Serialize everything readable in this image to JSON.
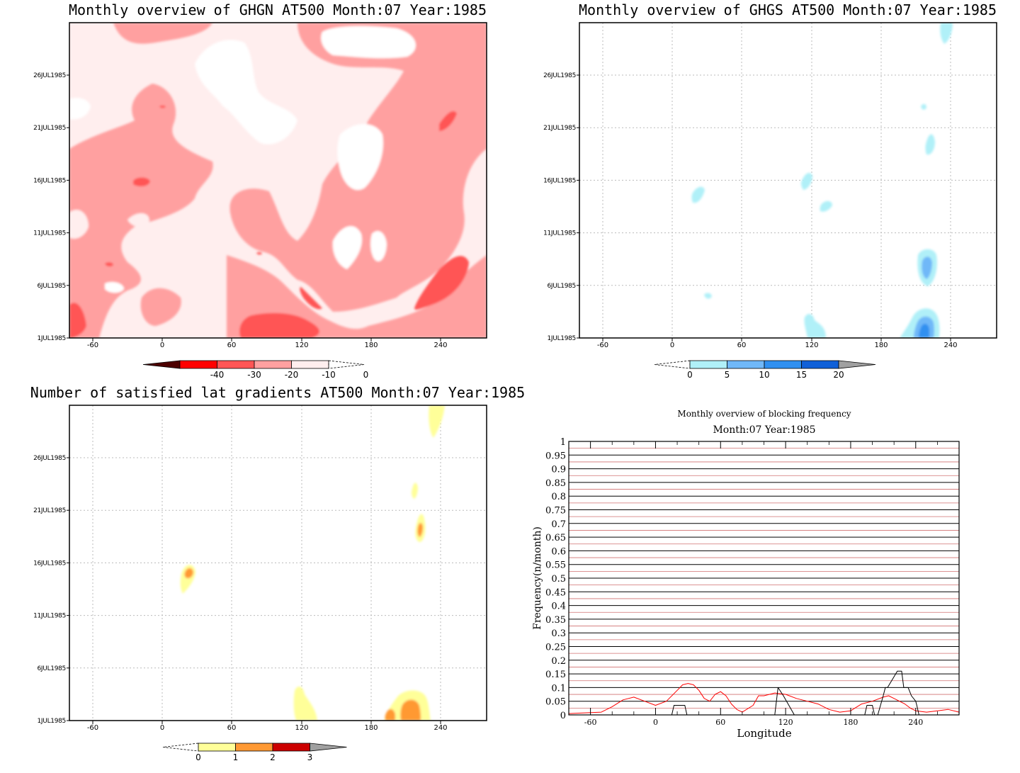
{
  "chart_data": [
    {
      "type": "heatmap",
      "title": "Monthly overview of GHGN AT500 Month:07 Year:1985",
      "x_ticks": [
        "-60",
        "0",
        "60",
        "120",
        "180",
        "240"
      ],
      "y_ticks": [
        "1JUL1985",
        "6JUL1985",
        "11JUL1985",
        "16JUL1985",
        "21JUL1985",
        "26JUL1985"
      ],
      "colorbar": {
        "labels": [
          "-40",
          "-30",
          "-20",
          "-10",
          "0"
        ],
        "colors": [
          "#4d0000",
          "#ff0000",
          "#ff5555",
          "#ffa0a0",
          "#ffeeee"
        ]
      },
      "palette": {
        "low": "#ff5555",
        "mid": "#ffa0a0",
        "high": "#ffeeee",
        "none": "#ffffff"
      }
    },
    {
      "type": "heatmap",
      "title": "Monthly overview of GHGS AT500 Month:07 Year:1985",
      "x_ticks": [
        "-60",
        "0",
        "60",
        "120",
        "180",
        "240"
      ],
      "y_ticks": [
        "1JUL1985",
        "6JUL1985",
        "11JUL1985",
        "16JUL1985",
        "21JUL1985",
        "26JUL1985"
      ],
      "colorbar": {
        "labels": [
          "0",
          "5",
          "10",
          "15",
          "20"
        ],
        "colors": [
          "#b0f0f8",
          "#70b8f8",
          "#3090f0",
          "#1060d8",
          "#a0a0a0"
        ]
      }
    },
    {
      "type": "heatmap",
      "title": "Number of satisfied lat gradients AT500 Month:07 Year:1985",
      "x_ticks": [
        "-60",
        "0",
        "60",
        "120",
        "180",
        "240"
      ],
      "y_ticks": [
        "1JUL1985",
        "6JUL1985",
        "11JUL1985",
        "16JUL1985",
        "21JUL1985",
        "26JUL1985"
      ],
      "colorbar": {
        "labels": [
          "0",
          "1",
          "2",
          "3"
        ],
        "colors": [
          "#ffff99",
          "#ff9933",
          "#cc0000",
          "#a0a0a0"
        ]
      }
    },
    {
      "type": "line",
      "title": "Monthly overview of blocking frequency",
      "subtitle": "Month:07 Year:1985",
      "xlabel": "Longitude",
      "ylabel": "Frequency(n/month)",
      "x_ticks": [
        "-60",
        "0",
        "60",
        "120",
        "180",
        "240"
      ],
      "y_ticks": [
        "0",
        "0.05",
        "0.1",
        "0.15",
        "0.2",
        "0.25",
        "0.3",
        "0.35",
        "0.4",
        "0.45",
        "0.5",
        "0.55",
        "0.6",
        "0.65",
        "0.7",
        "0.75",
        "0.8",
        "0.85",
        "0.9",
        "0.95",
        "1"
      ],
      "xlim": [
        -80,
        280
      ],
      "ylim": [
        0,
        1
      ],
      "series": [
        {
          "color": "#ff0000",
          "x": [
            -80,
            -50,
            -40,
            -30,
            -20,
            -10,
            0,
            10,
            20,
            25,
            30,
            35,
            40,
            45,
            50,
            55,
            60,
            65,
            70,
            75,
            80,
            90,
            95,
            100,
            110,
            120,
            130,
            140,
            150,
            160,
            170,
            180,
            190,
            200,
            210,
            215,
            220,
            225,
            230,
            235,
            240,
            250,
            260,
            270,
            280
          ],
          "y": [
            0.005,
            0.01,
            0.03,
            0.055,
            0.065,
            0.05,
            0.035,
            0.05,
            0.09,
            0.11,
            0.115,
            0.11,
            0.09,
            0.06,
            0.05,
            0.075,
            0.085,
            0.07,
            0.04,
            0.02,
            0.01,
            0.035,
            0.07,
            0.07,
            0.08,
            0.075,
            0.06,
            0.05,
            0.04,
            0.02,
            0.01,
            0.015,
            0.04,
            0.05,
            0.065,
            0.07,
            0.06,
            0.05,
            0.04,
            0.025,
            0.015,
            0.01,
            0.015,
            0.02,
            0.01
          ]
        },
        {
          "color": "#000000",
          "x": [
            -80,
            15,
            17,
            22,
            27,
            29,
            110,
            113,
            118,
            123,
            128,
            193,
            195,
            200,
            202,
            205,
            210,
            212,
            214,
            220,
            223,
            227,
            229,
            233,
            236,
            240,
            241,
            243,
            280
          ],
          "y": [
            0,
            0,
            0.035,
            0.035,
            0.035,
            0,
            0,
            0.1,
            0.07,
            0.035,
            0,
            0,
            0.035,
            0.035,
            0,
            0,
            0.07,
            0.1,
            0.1,
            0.14,
            0.16,
            0.16,
            0.1,
            0.1,
            0.07,
            0.05,
            0.035,
            0,
            0
          ]
        }
      ]
    }
  ]
}
